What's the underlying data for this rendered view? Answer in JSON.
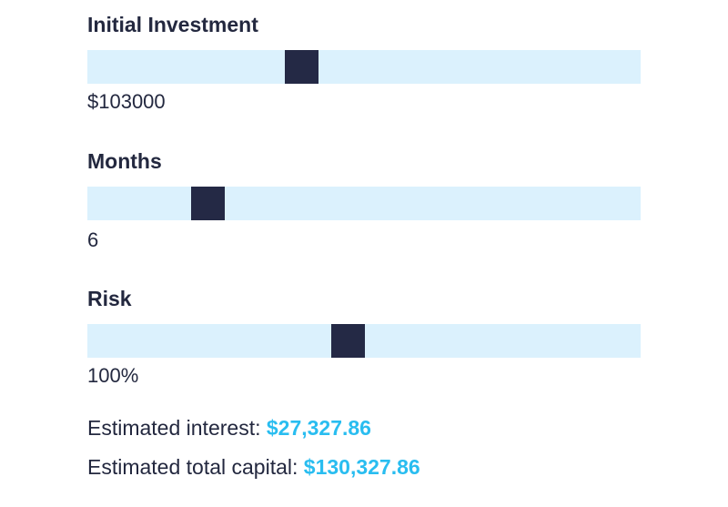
{
  "fields": [
    {
      "label": "Initial Investment",
      "value": "$103000",
      "slider_fraction": 0.38
    },
    {
      "label": "Months",
      "value": "6",
      "slider_fraction": 0.2
    },
    {
      "label": "Risk",
      "value": "100%",
      "slider_fraction": 0.47
    }
  ],
  "results": {
    "interest_label": "Estimated interest: ",
    "interest_amount": "$27,327.86",
    "capital_label": "Estimated total capital: ",
    "capital_amount": "$130,327.86"
  },
  "colors": {
    "text": "#23283f",
    "track": "#dbf1fd",
    "thumb": "#242945",
    "accent": "#29bdf0"
  }
}
